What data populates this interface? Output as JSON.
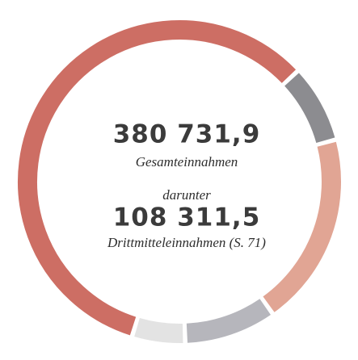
{
  "chart_data": {
    "type": "donut",
    "values": [
      58.3,
      7.8,
      19.4,
      9.2,
      5.3
    ],
    "colors": [
      "#cd6e64",
      "#8c8c90",
      "#e1a594",
      "#b6b6bc",
      "#e3e3e3"
    ],
    "center_texts": [
      {
        "text": "380 731,9",
        "style": "big"
      },
      {
        "text": "Gesamteinnahmen",
        "style": "it"
      },
      {
        "text": "darunter",
        "style": "it"
      },
      {
        "text": "108 311,5",
        "style": "big"
      },
      {
        "text": "Drittmitteleinnahmen (S. 71)",
        "style": "it"
      }
    ]
  }
}
